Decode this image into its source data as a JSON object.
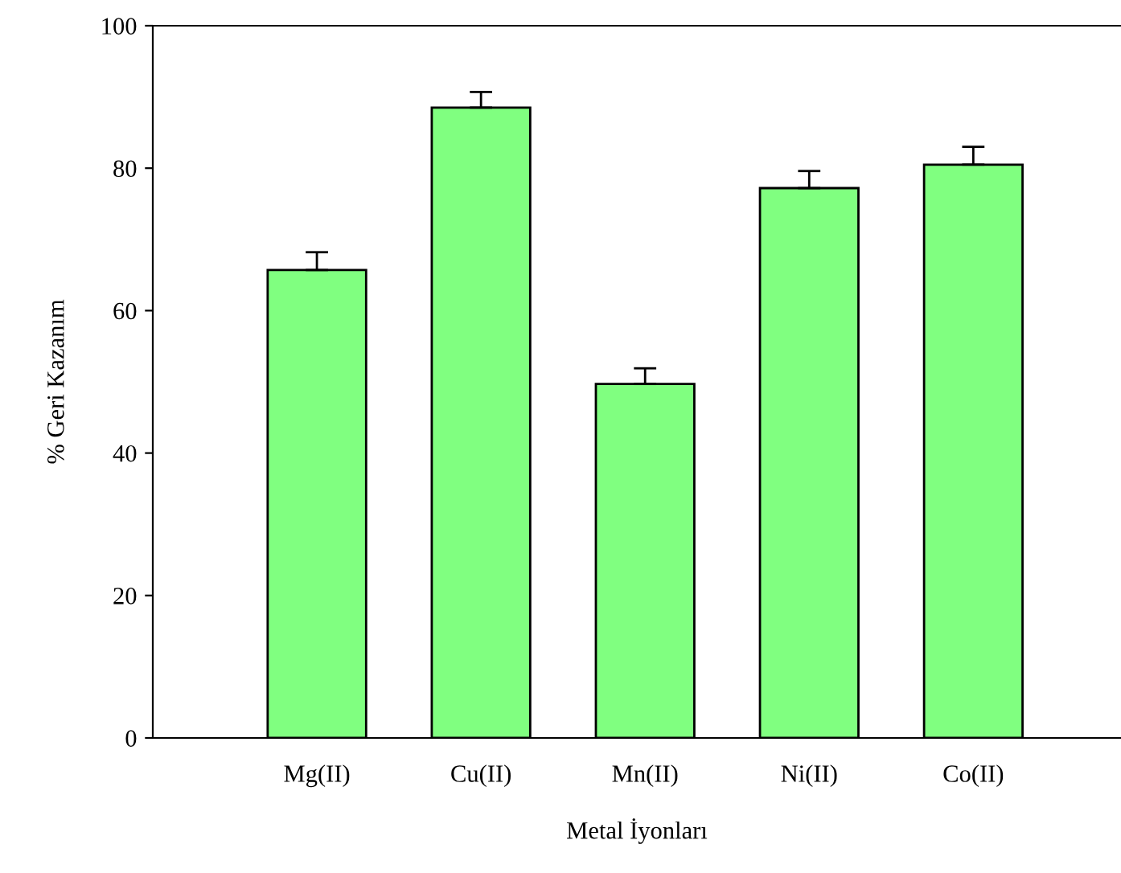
{
  "chart_data": {
    "type": "bar",
    "xlabel": "Metal İyonları",
    "ylabel": "% Geri Kazanım",
    "categories": [
      "Mg(II)",
      "Cu(II)",
      "Mn(II)",
      "Ni(II)",
      "Co(II)"
    ],
    "values": [
      65.7,
      88.5,
      49.7,
      77.2,
      80.5
    ],
    "errors": [
      [
        65.7,
        68.2
      ],
      [
        88.5,
        90.7
      ],
      [
        49.7,
        51.9
      ],
      [
        77.2,
        79.6
      ],
      [
        80.5,
        83.0
      ]
    ],
    "color": "#80ff80",
    "ylim": [
      0,
      100
    ],
    "yticks": [
      0,
      20,
      40,
      60,
      80,
      100
    ],
    "grid": false
  }
}
